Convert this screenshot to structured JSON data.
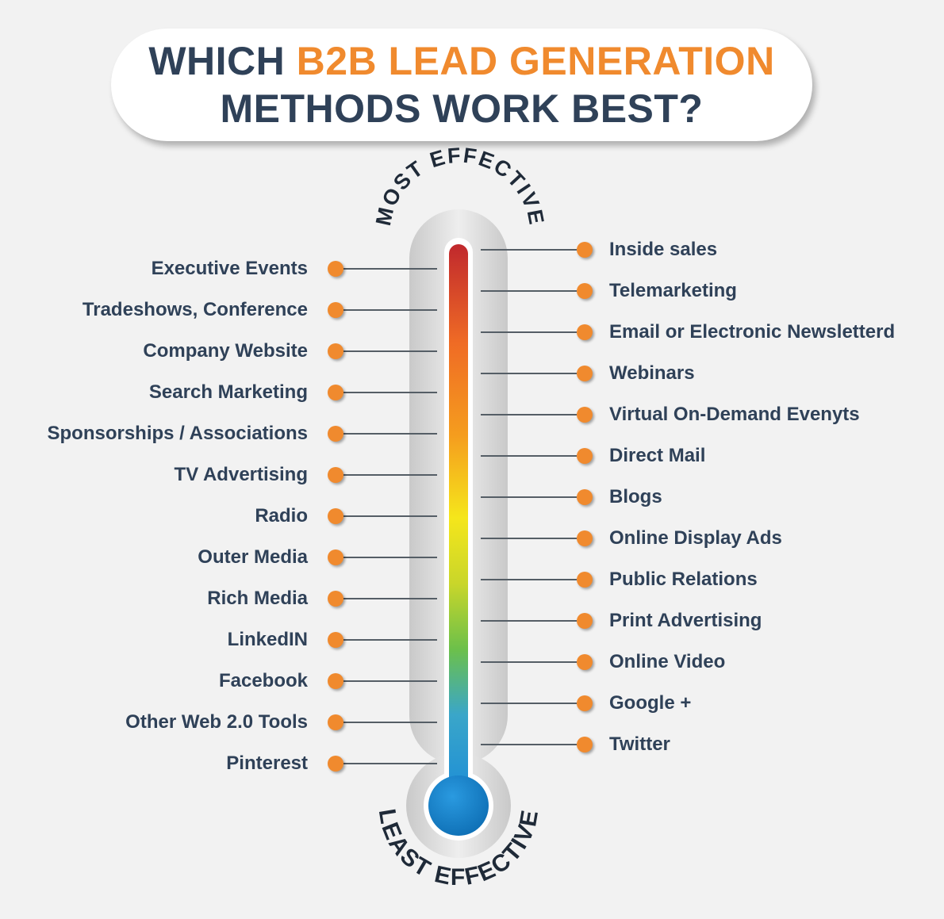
{
  "title": {
    "line1_prefix": "WHICH ",
    "line1_accent": "B2B LEAD GENERATION",
    "line2": "METHODS WORK BEST?"
  },
  "scale": {
    "top_label": "MOST EFFECTIVE",
    "bottom_label": "LEAST EFFECTIVE"
  },
  "left_methods": [
    "Executive Events",
    "Tradeshows, Conference",
    "Company Website",
    "Search Marketing",
    "Sponsorships / Associations",
    "TV Advertising",
    "Radio",
    "Outer Media",
    "Rich Media",
    "LinkedIN",
    "Facebook",
    "Other Web 2.0 Tools",
    "Pinterest"
  ],
  "right_methods": [
    "Inside sales",
    "Telemarketing",
    "Email or Electronic Newsletterd",
    "Webinars",
    "Virtual On-Demand Evenyts",
    "Direct Mail",
    "Blogs",
    "Online Display Ads",
    "Public Relations",
    "Print Advertising",
    "Online Video",
    "Google +",
    "Twitter"
  ],
  "colors": {
    "background": "#f2f2f2",
    "title_dark": "#2f4158",
    "accent_orange": "#f08a2e",
    "thermo_hot": "#c0282d",
    "thermo_mid": "#f5e61b",
    "thermo_cold": "#1f8fd6"
  }
}
